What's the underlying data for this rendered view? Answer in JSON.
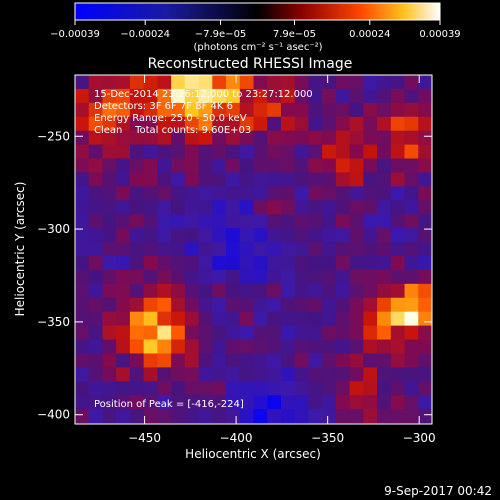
{
  "chart_data": {
    "type": "heatmap",
    "title": "Reconstructed RHESSI Image",
    "xlabel": "Heliocentric X (arcsec)",
    "ylabel": "Heliocentric Y (arcsec)",
    "xlim": [
      -488,
      -293
    ],
    "ylim": [
      -405,
      -217
    ],
    "x_ticks": [
      {
        "value": -450,
        "label": "−450"
      },
      {
        "value": -400,
        "label": "−400"
      },
      {
        "value": -350,
        "label": "−350"
      },
      {
        "value": -300,
        "label": "−300"
      }
    ],
    "y_ticks": [
      {
        "value": -250,
        "label": "−250"
      },
      {
        "value": -300,
        "label": "−300"
      },
      {
        "value": -350,
        "label": "−350"
      },
      {
        "value": -400,
        "label": "−400"
      }
    ],
    "colorbar": {
      "range": [
        -0.00039,
        0.00039
      ],
      "ticks": [
        {
          "value": -0.00039,
          "label": "−0.00039"
        },
        {
          "value": -0.00024,
          "label": "−0.00024"
        },
        {
          "value": -7.9e-05,
          "label": "−7.9e−05"
        },
        {
          "value": 7.9e-05,
          "label": "7.9e−05"
        },
        {
          "value": 0.00024,
          "label": "0.00024"
        },
        {
          "value": 0.00039,
          "label": "0.00039"
        }
      ],
      "unit_label": "(photons cm⁻² s⁻¹ asec⁻²)"
    },
    "annotations": [
      "15-Dec-2014 23:26:12.000 to 23:27:12.000",
      "Detectors: 3F 6F 7F 8F 4K 6",
      "Energy Range: 25.0 - 50.0 keV",
      "Clean    Total counts: 9.60E+03"
    ],
    "peak_label": "Position of Peak = [-416,-224]",
    "peak": {
      "x": -416,
      "y": -224
    },
    "hotspots": [
      {
        "x": -418,
        "y": -222,
        "sigma": 18,
        "amp": 1.0
      },
      {
        "x": -470,
        "y": -240,
        "sigma": 15,
        "amp": 0.55
      },
      {
        "x": -445,
        "y": -355,
        "sigma": 14,
        "amp": 0.82
      },
      {
        "x": -303,
        "y": -343,
        "sigma": 9,
        "amp": 0.72
      },
      {
        "x": -318,
        "y": -350,
        "sigma": 12,
        "amp": 0.55
      },
      {
        "x": -304,
        "y": -250,
        "sigma": 12,
        "amp": 0.55
      },
      {
        "x": -340,
        "y": -260,
        "sigma": 11,
        "amp": 0.45
      },
      {
        "x": -375,
        "y": -235,
        "sigma": 10,
        "amp": 0.4
      },
      {
        "x": -333,
        "y": -390,
        "sigma": 10,
        "amp": 0.35
      },
      {
        "x": -378,
        "y": -290,
        "sigma": 8,
        "amp": 0.3
      }
    ],
    "coldspots": [
      {
        "x": -380,
        "y": -398,
        "sigma": 14,
        "amp": 0.35
      },
      {
        "x": -395,
        "y": -305,
        "sigma": 18,
        "amp": 0.25
      }
    ]
  },
  "timestamp": "9-Sep-2017 00:42"
}
